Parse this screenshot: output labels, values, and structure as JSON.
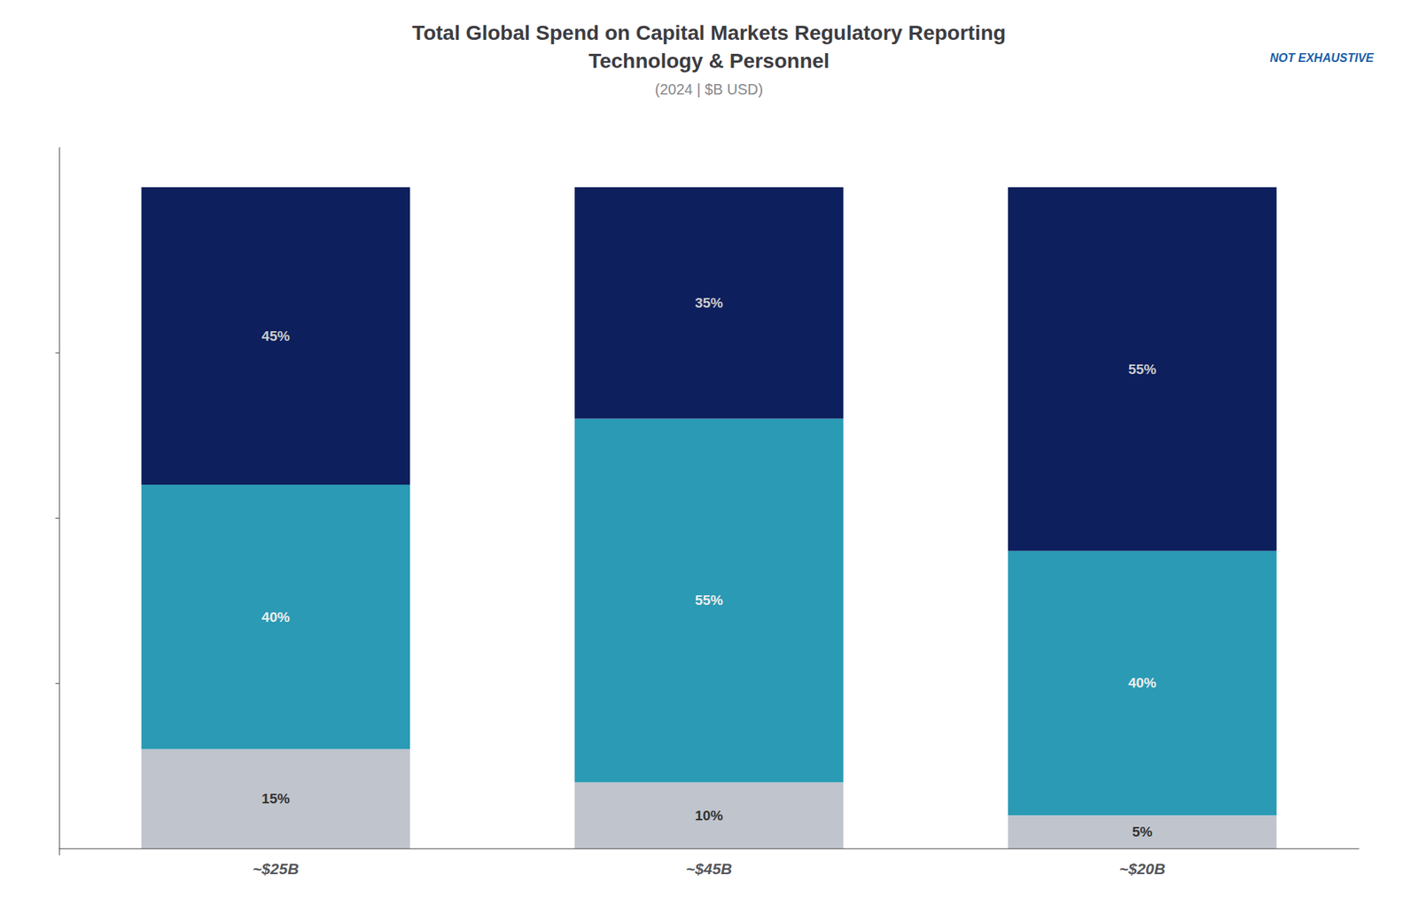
{
  "chart_data": {
    "type": "bar",
    "title": "Total Global Spend on Capital Markets Regulatory Reporting\nTechnology & Personnel",
    "subtitle": "(2024 | $B USD)",
    "annotations": [
      "NOT EXHAUSTIVE"
    ],
    "categories": [
      "~$25B",
      "~$45B",
      "~$20B"
    ],
    "series": [
      {
        "color": "#c0c4cc",
        "values": [
          15,
          10,
          5
        ],
        "value_labels": [
          "15%",
          "10%",
          "5%"
        ]
      },
      {
        "color": "#2a9ab5",
        "values": [
          40,
          55,
          40
        ],
        "value_labels": [
          "40%",
          "55%",
          "40%"
        ]
      },
      {
        "color": "#0d1f5c",
        "values": [
          45,
          35,
          55
        ],
        "value_labels": [
          "45%",
          "35%",
          "55%"
        ]
      }
    ],
    "stacked": true,
    "data_labels": true,
    "ylim": [
      -1,
      106
    ],
    "yticks": [
      25,
      50,
      75
    ],
    "tick_labels": "x",
    "grid": false
  }
}
